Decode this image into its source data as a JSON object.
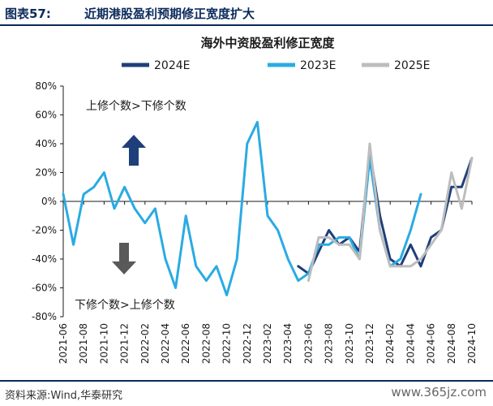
{
  "header": {
    "figure_label": "图表57:",
    "figure_title": "近期港股盈利预期修正宽度扩大"
  },
  "footer": {
    "source": "资料来源:Wind,华泰研究",
    "watermark": "www.365jz.com"
  },
  "colors": {
    "s2024": "#1f3f7a",
    "s2023": "#2aabe2",
    "s2025": "#bdbdbd",
    "arrow_up": "#1f3f7a",
    "arrow_down": "#595959",
    "accent": "#0b2a5b"
  },
  "chart_data": {
    "type": "line",
    "title": "海外中资股盈利修正宽度",
    "x_dates": [
      "2021-06",
      "2021-07",
      "2021-08",
      "2021-09",
      "2021-10",
      "2021-11",
      "2021-12",
      "2022-01",
      "2022-02",
      "2022-03",
      "2022-04",
      "2022-05",
      "2022-06",
      "2022-07",
      "2022-08",
      "2022-09",
      "2022-10",
      "2022-11",
      "2022-12",
      "2023-01",
      "2023-02",
      "2023-03",
      "2023-04",
      "2023-05",
      "2023-06",
      "2023-07",
      "2023-08",
      "2023-09",
      "2023-10",
      "2023-11",
      "2023-12",
      "2024-01",
      "2024-02",
      "2024-03",
      "2024-04",
      "2024-05",
      "2024-06",
      "2024-07",
      "2024-08",
      "2024-09",
      "2024-10"
    ],
    "x_tick_labels": [
      "2021-06",
      "2021-08",
      "2021-10",
      "2021-12",
      "2022-02",
      "2022-04",
      "2022-06",
      "2022-08",
      "2022-10",
      "2022-12",
      "2023-02",
      "2023-04",
      "2023-06",
      "2023-08",
      "2023-10",
      "2023-12",
      "2024-02",
      "2024-04",
      "2024-06",
      "2024-08",
      "2024-10"
    ],
    "y_ticks": [
      80,
      60,
      40,
      20,
      0,
      -20,
      -40,
      -60,
      -80
    ],
    "y_tick_labels": [
      "80%",
      "60%",
      "40%",
      "20%",
      "0%",
      "-20%",
      "-40%",
      "-60%",
      "-80%"
    ],
    "ylim": [
      -80,
      80
    ],
    "ylabel": "",
    "xlabel": "",
    "legend": {
      "placement": "top"
    },
    "series": [
      {
        "name": "2024E",
        "key": "s2024",
        "values": [
          null,
          null,
          null,
          null,
          null,
          null,
          null,
          null,
          null,
          null,
          null,
          null,
          null,
          null,
          null,
          null,
          null,
          null,
          null,
          null,
          null,
          null,
          null,
          -45,
          -50,
          -35,
          -20,
          -30,
          -25,
          -35,
          35,
          -10,
          -40,
          -45,
          -30,
          -45,
          -25,
          -20,
          10,
          10,
          30
        ]
      },
      {
        "name": "2023E",
        "key": "s2023",
        "values": [
          5,
          -30,
          5,
          10,
          20,
          -5,
          10,
          -5,
          -15,
          -5,
          -40,
          -60,
          -10,
          -45,
          -55,
          -45,
          -65,
          -40,
          40,
          55,
          -10,
          -20,
          -40,
          -55,
          -50,
          -30,
          -30,
          -25,
          -25,
          -40,
          30,
          -20,
          -45,
          -40,
          -20,
          5,
          null,
          null,
          null,
          null,
          null
        ]
      },
      {
        "name": "2025E",
        "key": "s2025",
        "values": [
          null,
          null,
          null,
          null,
          null,
          null,
          null,
          null,
          null,
          null,
          null,
          null,
          null,
          null,
          null,
          null,
          null,
          null,
          null,
          null,
          null,
          null,
          null,
          null,
          -55,
          -25,
          -25,
          -30,
          -30,
          -40,
          40,
          -20,
          -45,
          -45,
          -45,
          -40,
          -30,
          -20,
          20,
          -5,
          30
        ]
      }
    ],
    "annotations": {
      "up_text": "上修个数>下修个数",
      "down_text": "下修个数>上修个数"
    }
  }
}
